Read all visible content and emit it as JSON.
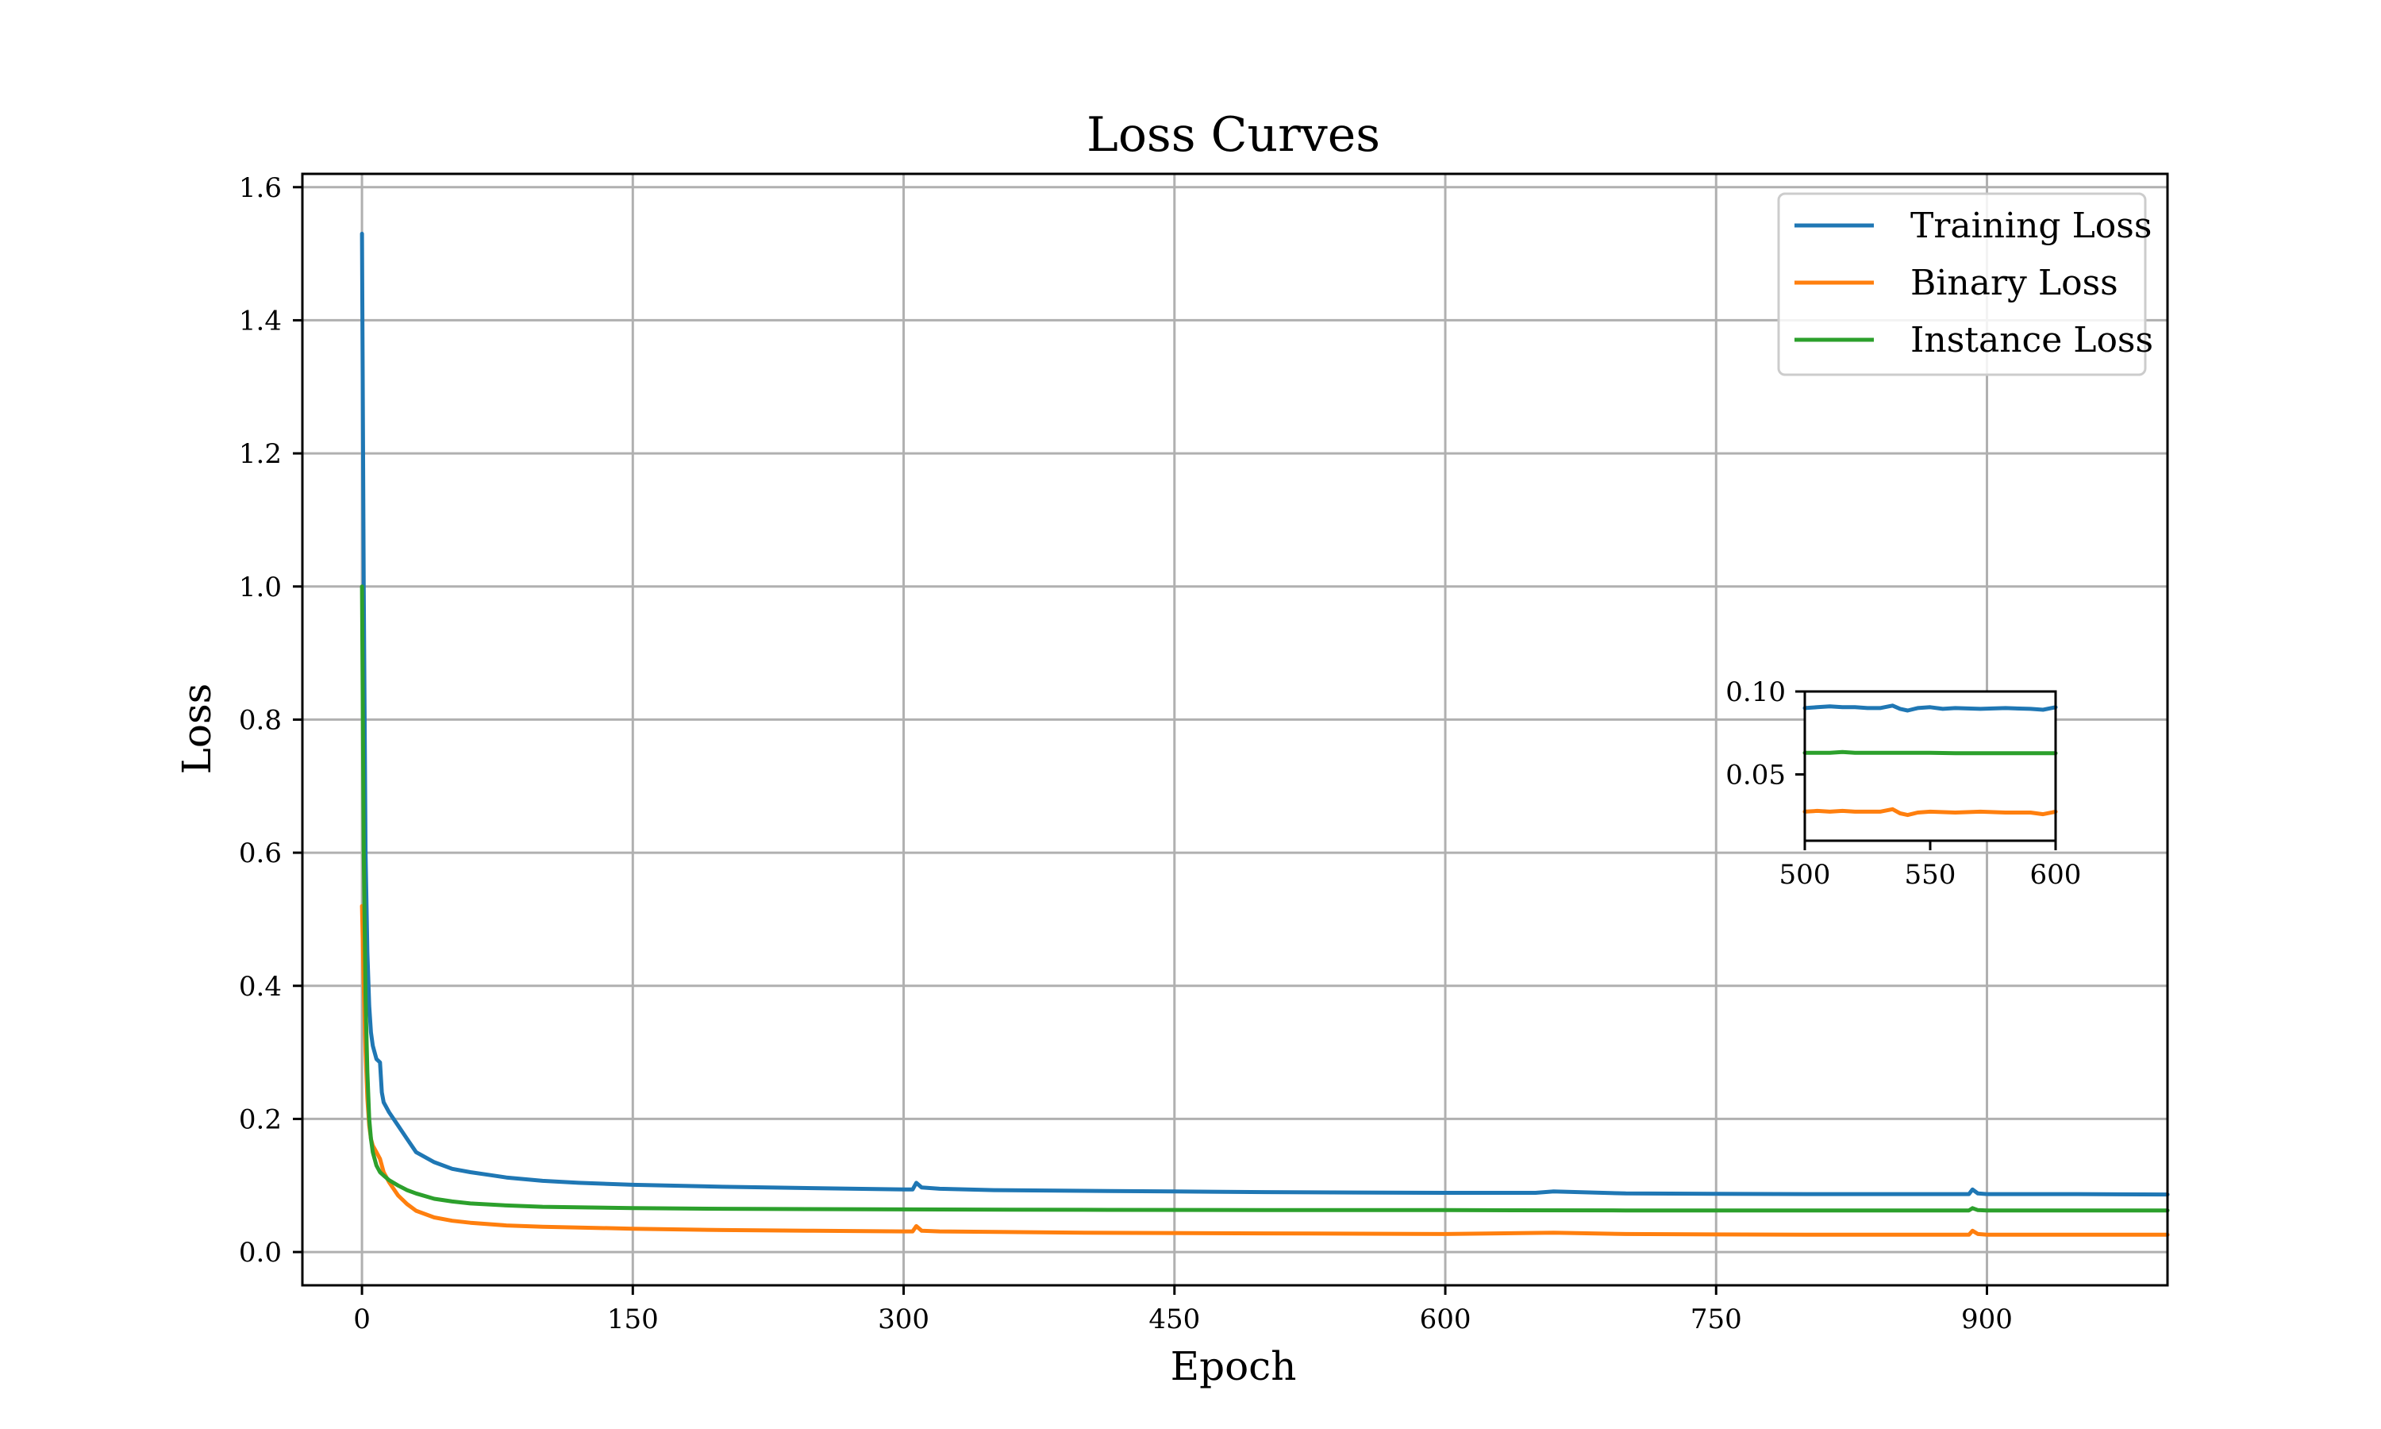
{
  "chart_data": [
    {
      "type": "line",
      "title": "Loss Curves",
      "xlabel": "Epoch",
      "ylabel": "Loss",
      "xlim": [
        -33,
        1000
      ],
      "ylim": [
        -0.05,
        1.62
      ],
      "xticks": [
        0,
        150,
        300,
        450,
        600,
        750,
        900
      ],
      "xtick_labels": [
        "0",
        "150",
        "300",
        "450",
        "600",
        "750",
        "900"
      ],
      "yticks": [
        0.0,
        0.2,
        0.4,
        0.6,
        0.8,
        1.0,
        1.2,
        1.4,
        1.6
      ],
      "ytick_labels": [
        "0.0",
        "0.2",
        "0.4",
        "0.6",
        "0.8",
        "1.0",
        "1.2",
        "1.4",
        "1.6"
      ],
      "grid": true,
      "legend_position": "top-right",
      "series": [
        {
          "name": "Training Loss",
          "color": "#1f77b4",
          "x": [
            0,
            1,
            2,
            3,
            4,
            5,
            6,
            8,
            10,
            11,
            12,
            15,
            20,
            25,
            30,
            40,
            50,
            60,
            70,
            80,
            100,
            120,
            150,
            200,
            250,
            300,
            305,
            307,
            310,
            320,
            350,
            400,
            450,
            500,
            550,
            600,
            650,
            660,
            700,
            750,
            800,
            850,
            890,
            892,
            895,
            900,
            950,
            1000,
            1000
          ],
          "y": [
            1.53,
            1.0,
            0.6,
            0.45,
            0.37,
            0.33,
            0.31,
            0.29,
            0.285,
            0.24,
            0.225,
            0.21,
            0.19,
            0.17,
            0.15,
            0.135,
            0.125,
            0.12,
            0.116,
            0.112,
            0.107,
            0.104,
            0.101,
            0.098,
            0.096,
            0.094,
            0.094,
            0.104,
            0.097,
            0.095,
            0.093,
            0.092,
            0.091,
            0.09,
            0.0895,
            0.089,
            0.089,
            0.091,
            0.088,
            0.0875,
            0.087,
            0.087,
            0.087,
            0.094,
            0.088,
            0.087,
            0.087,
            0.0865,
            0.0865
          ]
        },
        {
          "name": "Binary Loss",
          "color": "#ff7f0e",
          "x": [
            0,
            1,
            2,
            3,
            4,
            5,
            6,
            8,
            10,
            12,
            15,
            20,
            25,
            30,
            40,
            50,
            60,
            80,
            100,
            150,
            200,
            250,
            300,
            305,
            307,
            310,
            320,
            400,
            500,
            600,
            660,
            700,
            800,
            890,
            892,
            895,
            900,
            1000
          ],
          "y": [
            0.52,
            0.4,
            0.3,
            0.23,
            0.19,
            0.17,
            0.16,
            0.15,
            0.14,
            0.12,
            0.105,
            0.085,
            0.072,
            0.062,
            0.052,
            0.047,
            0.044,
            0.04,
            0.038,
            0.035,
            0.033,
            0.032,
            0.031,
            0.031,
            0.039,
            0.032,
            0.031,
            0.029,
            0.028,
            0.027,
            0.029,
            0.027,
            0.026,
            0.026,
            0.032,
            0.027,
            0.026,
            0.026
          ]
        },
        {
          "name": "Instance Loss",
          "color": "#2ca02c",
          "x": [
            0,
            1,
            2,
            3,
            4,
            5,
            6,
            8,
            10,
            12,
            15,
            20,
            25,
            30,
            40,
            50,
            60,
            80,
            100,
            150,
            200,
            300,
            400,
            500,
            600,
            700,
            800,
            890,
            892,
            895,
            900,
            1000
          ],
          "y": [
            1.0,
            0.6,
            0.38,
            0.27,
            0.2,
            0.17,
            0.15,
            0.13,
            0.12,
            0.115,
            0.108,
            0.1,
            0.093,
            0.088,
            0.08,
            0.076,
            0.073,
            0.07,
            0.068,
            0.066,
            0.065,
            0.064,
            0.0635,
            0.063,
            0.063,
            0.0625,
            0.0625,
            0.0625,
            0.066,
            0.063,
            0.0625,
            0.0625
          ]
        }
      ]
    },
    {
      "type": "line",
      "xlim": [
        500,
        600
      ],
      "ylim": [
        0.01,
        0.1
      ],
      "xticks": [
        500,
        550,
        600
      ],
      "xtick_labels": [
        "500",
        "550",
        "600"
      ],
      "yticks": [
        0.05,
        0.1
      ],
      "ytick_labels": [
        "0.05",
        "0.10"
      ],
      "grid": false,
      "series": [
        {
          "name": "Training Loss",
          "color": "#1f77b4",
          "x": [
            500,
            505,
            510,
            515,
            520,
            525,
            530,
            535,
            538,
            541,
            545,
            550,
            555,
            560,
            570,
            580,
            590,
            595,
            600
          ],
          "y": [
            0.09,
            0.0905,
            0.091,
            0.0905,
            0.0905,
            0.09,
            0.09,
            0.0915,
            0.0895,
            0.0885,
            0.09,
            0.0905,
            0.0895,
            0.09,
            0.0895,
            0.09,
            0.0895,
            0.089,
            0.0905
          ]
        },
        {
          "name": "Binary Loss",
          "color": "#ff7f0e",
          "x": [
            500,
            505,
            510,
            515,
            520,
            525,
            530,
            535,
            538,
            541,
            545,
            550,
            560,
            570,
            580,
            590,
            595,
            600
          ],
          "y": [
            0.0275,
            0.028,
            0.0275,
            0.028,
            0.0275,
            0.0275,
            0.0275,
            0.029,
            0.0265,
            0.0255,
            0.027,
            0.0275,
            0.027,
            0.0275,
            0.027,
            0.027,
            0.026,
            0.0275
          ]
        },
        {
          "name": "Instance Loss",
          "color": "#2ca02c",
          "x": [
            500,
            510,
            515,
            520,
            530,
            540,
            550,
            560,
            570,
            580,
            590,
            600
          ],
          "y": [
            0.063,
            0.063,
            0.0635,
            0.063,
            0.063,
            0.063,
            0.063,
            0.0628,
            0.0628,
            0.0628,
            0.0628,
            0.0628
          ]
        }
      ]
    }
  ]
}
